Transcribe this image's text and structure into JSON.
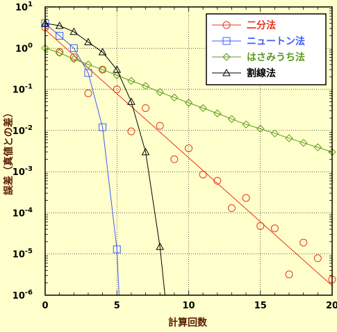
{
  "chart_data": {
    "type": "scatter",
    "xlabel": "計算回数",
    "ylabel": "誤差（真値との差）",
    "x_ticks": [
      "0",
      "5",
      "10",
      "15",
      "20"
    ],
    "y_ticks": [
      {
        "base": "10",
        "exp": "1",
        "value": 10
      },
      {
        "base": "10",
        "exp": "0",
        "value": 1
      },
      {
        "base": "10",
        "exp": "-1",
        "value": 0.1
      },
      {
        "base": "10",
        "exp": "-2",
        "value": 0.01
      },
      {
        "base": "10",
        "exp": "-3",
        "value": 0.001
      },
      {
        "base": "10",
        "exp": "-4",
        "value": 0.0001
      },
      {
        "base": "10",
        "exp": "-5",
        "value": 1e-05
      },
      {
        "base": "10",
        "exp": "-6",
        "value": 1e-06
      }
    ],
    "xlim": [
      0,
      20
    ],
    "ylim": [
      1e-06,
      10
    ],
    "yscale": "log",
    "grid": true,
    "legend_position": "top-right",
    "series": [
      {
        "name": "二分法",
        "color": "#e8341c",
        "marker": "circle",
        "trend_line": {
          "x": [
            0,
            20
          ],
          "y": [
            2.8,
            1.7e-06
          ]
        },
        "x": [
          0,
          1,
          2,
          3,
          4,
          5,
          6,
          7,
          8,
          9,
          10,
          11,
          12,
          13,
          14,
          15,
          16,
          17,
          18,
          19,
          20
        ],
        "y": [
          3.2,
          0.8,
          0.6,
          0.08,
          0.3,
          0.1,
          0.0095,
          0.035,
          0.013,
          0.002,
          0.0037,
          0.00085,
          0.0006,
          0.00013,
          0.00023,
          4.8e-05,
          4.2e-05,
          3.2e-06,
          1.9e-05,
          7.9e-06,
          2.4e-06
        ]
      },
      {
        "name": "ニュートン法",
        "color": "#3b5bff",
        "marker": "square",
        "x": [
          0,
          1,
          2,
          3,
          4,
          5
        ],
        "y": [
          4,
          2,
          1,
          0.25,
          0.012,
          1.3e-05
        ],
        "tail": {
          "x": 5.15,
          "y": 1e-06
        }
      },
      {
        "name": "はさみうち法",
        "color": "#5b9a1a",
        "marker": "diamond",
        "x": [
          0,
          1,
          2,
          3,
          4,
          5,
          6,
          7,
          8,
          9,
          10,
          11,
          12,
          13,
          14,
          15,
          16,
          17,
          18,
          19,
          20
        ],
        "y": [
          1,
          0.77,
          0.54,
          0.4,
          0.3,
          0.22,
          0.16,
          0.12,
          0.085,
          0.063,
          0.047,
          0.035,
          0.026,
          0.019,
          0.014,
          0.011,
          0.0085,
          0.0065,
          0.005,
          0.0039,
          0.003
        ]
      },
      {
        "name": "割線法",
        "color": "#000000",
        "marker": "triangle",
        "x": [
          0,
          1,
          2,
          3,
          4,
          5,
          6,
          7,
          8
        ],
        "y": [
          4,
          3.5,
          2.5,
          1.4,
          0.8,
          0.3,
          0.05,
          0.003,
          1.5e-05
        ],
        "tail": {
          "x": 8.35,
          "y": 1e-06
        }
      }
    ]
  }
}
